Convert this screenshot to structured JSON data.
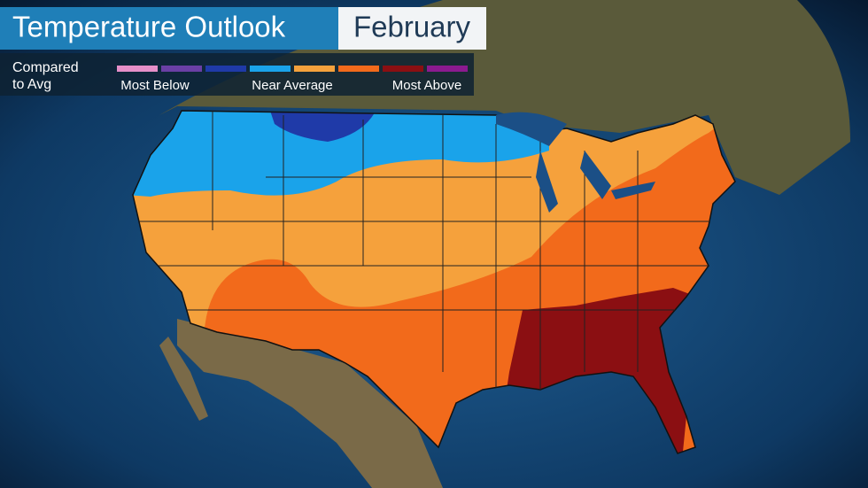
{
  "header": {
    "title": "Temperature Outlook",
    "month": "February"
  },
  "legend": {
    "caption": [
      "Compared",
      "to Avg"
    ],
    "colors": [
      "#e58fc9",
      "#6a3fa5",
      "#1f3aa8",
      "#1aa3ea",
      "#f5a13c",
      "#f26a1b",
      "#8b0f12",
      "#8b1a8f"
    ],
    "labels": [
      "Most Below",
      "Near Average",
      "Most Above"
    ]
  }
}
